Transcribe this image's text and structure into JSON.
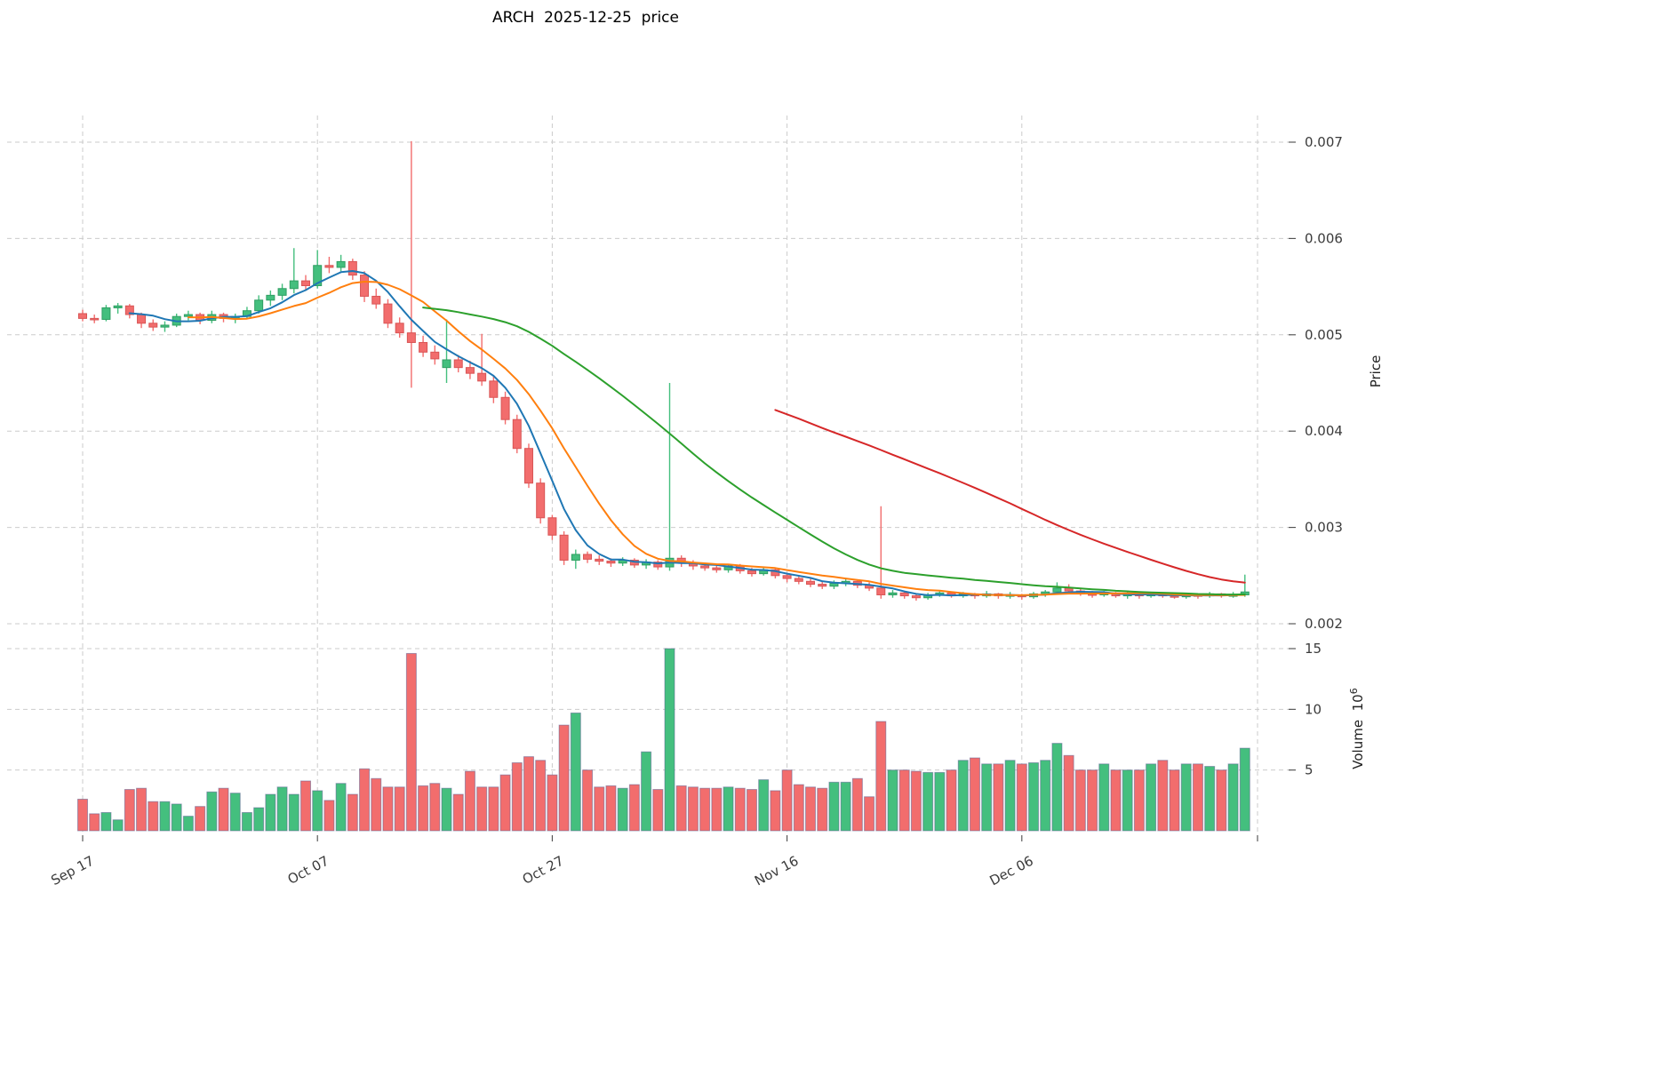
{
  "axes": {
    "volume_label": "Volume  10",
    "volume_exp": "6"
  },
  "chart_data": {
    "type": "candlestick",
    "title": "ARCH  2025-12-25  price",
    "ylabel": "Price",
    "volume_ylabel": "Volume 10^6",
    "xlabel": "",
    "legend": "none",
    "grid": true,
    "x_tick_labels": [
      "Sep 17",
      "Oct 07",
      "Oct 27",
      "Nov 16",
      "Dec 06"
    ],
    "x_tick_indices": [
      0,
      20,
      40,
      60,
      80
    ],
    "price_ticks": [
      0.002,
      0.003,
      0.004,
      0.005,
      0.006,
      0.007
    ],
    "price_ylim": [
      0.0019,
      0.0073
    ],
    "volume_ticks": [
      5,
      10,
      15
    ],
    "volume_ylim": [
      0,
      15.8
    ],
    "up_color": "#44bf7e",
    "down_color": "#f26d6d",
    "up_edge_color": "#2f9e62",
    "down_edge_color": "#d85555",
    "volume_bar_edge_color": "#55598e",
    "ma_lines": [
      {
        "name": "MA5",
        "window": 5,
        "color": "#1f77b4"
      },
      {
        "name": "MA10",
        "window": 10,
        "color": "#ff7f0e"
      },
      {
        "name": "MA30",
        "window": 30,
        "color": "#2ca02c"
      },
      {
        "name": "MA60",
        "window": 60,
        "color": "#d62728"
      }
    ],
    "ohlc": [
      [
        0.00522,
        0.00526,
        0.00514,
        0.00517
      ],
      [
        0.00517,
        0.00521,
        0.00512,
        0.00516
      ],
      [
        0.00516,
        0.00531,
        0.00514,
        0.00528
      ],
      [
        0.00528,
        0.00533,
        0.00522,
        0.0053
      ],
      [
        0.0053,
        0.00532,
        0.00517,
        0.00521
      ],
      [
        0.00521,
        0.00523,
        0.00507,
        0.00512
      ],
      [
        0.00512,
        0.00516,
        0.00504,
        0.00508
      ],
      [
        0.00508,
        0.00514,
        0.00503,
        0.0051
      ],
      [
        0.0051,
        0.00522,
        0.00508,
        0.00519
      ],
      [
        0.00519,
        0.00525,
        0.00515,
        0.00521
      ],
      [
        0.00521,
        0.00523,
        0.00511,
        0.00515
      ],
      [
        0.00515,
        0.00525,
        0.00512,
        0.00521
      ],
      [
        0.00521,
        0.00523,
        0.00513,
        0.00517
      ],
      [
        0.00517,
        0.00522,
        0.00512,
        0.00519
      ],
      [
        0.00519,
        0.00529,
        0.00516,
        0.00525
      ],
      [
        0.00525,
        0.00541,
        0.00522,
        0.00536
      ],
      [
        0.00536,
        0.00546,
        0.0053,
        0.00541
      ],
      [
        0.00541,
        0.00553,
        0.00536,
        0.00548
      ],
      [
        0.00548,
        0.0059,
        0.00543,
        0.00556
      ],
      [
        0.00556,
        0.00562,
        0.00547,
        0.00551
      ],
      [
        0.00551,
        0.00588,
        0.00548,
        0.00572
      ],
      [
        0.00572,
        0.00581,
        0.00564,
        0.0057
      ],
      [
        0.0057,
        0.00583,
        0.00566,
        0.00576
      ],
      [
        0.00576,
        0.00579,
        0.00557,
        0.00562
      ],
      [
        0.00562,
        0.00566,
        0.00534,
        0.0054
      ],
      [
        0.0054,
        0.00548,
        0.00527,
        0.00532
      ],
      [
        0.00532,
        0.00537,
        0.00507,
        0.00512
      ],
      [
        0.00512,
        0.00518,
        0.00497,
        0.00502
      ],
      [
        0.00502,
        0.00701,
        0.00445,
        0.00492
      ],
      [
        0.00492,
        0.00499,
        0.00477,
        0.00482
      ],
      [
        0.00482,
        0.00489,
        0.00469,
        0.00475
      ],
      [
        0.00466,
        0.00516,
        0.0045,
        0.00474
      ],
      [
        0.00474,
        0.00479,
        0.00461,
        0.00466
      ],
      [
        0.00466,
        0.00473,
        0.00454,
        0.0046
      ],
      [
        0.0046,
        0.00501,
        0.00447,
        0.00452
      ],
      [
        0.00452,
        0.00457,
        0.00429,
        0.00435
      ],
      [
        0.00435,
        0.00441,
        0.00407,
        0.00412
      ],
      [
        0.00412,
        0.00417,
        0.00377,
        0.00382
      ],
      [
        0.00382,
        0.00387,
        0.00341,
        0.00346
      ],
      [
        0.00346,
        0.00351,
        0.00304,
        0.0031
      ],
      [
        0.0031,
        0.00313,
        0.00287,
        0.00292
      ],
      [
        0.00292,
        0.00296,
        0.00261,
        0.00266
      ],
      [
        0.00266,
        0.00277,
        0.00257,
        0.00272
      ],
      [
        0.00272,
        0.00275,
        0.00263,
        0.00267
      ],
      [
        0.00267,
        0.00271,
        0.00261,
        0.00265
      ],
      [
        0.00265,
        0.00268,
        0.00259,
        0.00263
      ],
      [
        0.00263,
        0.00269,
        0.0026,
        0.00266
      ],
      [
        0.00266,
        0.00268,
        0.00258,
        0.00261
      ],
      [
        0.00261,
        0.00267,
        0.00257,
        0.00264
      ],
      [
        0.00264,
        0.00266,
        0.00256,
        0.00259
      ],
      [
        0.00259,
        0.0045,
        0.00255,
        0.00268
      ],
      [
        0.00268,
        0.00271,
        0.00259,
        0.00263
      ],
      [
        0.00263,
        0.00266,
        0.00256,
        0.0026
      ],
      [
        0.0026,
        0.00263,
        0.00255,
        0.00258
      ],
      [
        0.00258,
        0.00261,
        0.00253,
        0.00256
      ],
      [
        0.00256,
        0.00262,
        0.00253,
        0.0026
      ],
      [
        0.0026,
        0.00262,
        0.00252,
        0.00255
      ],
      [
        0.00255,
        0.00258,
        0.00249,
        0.00252
      ],
      [
        0.00252,
        0.00259,
        0.0025,
        0.00256
      ],
      [
        0.00256,
        0.00258,
        0.00247,
        0.0025
      ],
      [
        0.0025,
        0.00253,
        0.00243,
        0.00247
      ],
      [
        0.00247,
        0.0025,
        0.00241,
        0.00244
      ],
      [
        0.00244,
        0.00247,
        0.00238,
        0.00241
      ],
      [
        0.00241,
        0.00244,
        0.00236,
        0.00239
      ],
      [
        0.00239,
        0.00245,
        0.00236,
        0.00242
      ],
      [
        0.00242,
        0.00247,
        0.00239,
        0.00244
      ],
      [
        0.00244,
        0.00246,
        0.00237,
        0.0024
      ],
      [
        0.0024,
        0.00243,
        0.00234,
        0.00237
      ],
      [
        0.00237,
        0.00322,
        0.00226,
        0.0023
      ],
      [
        0.0023,
        0.00235,
        0.00227,
        0.00232
      ],
      [
        0.00232,
        0.00234,
        0.00226,
        0.00229
      ],
      [
        0.00229,
        0.00231,
        0.00224,
        0.00227
      ],
      [
        0.00227,
        0.00232,
        0.00225,
        0.0023
      ],
      [
        0.0023,
        0.00234,
        0.00228,
        0.00232
      ],
      [
        0.00232,
        0.00233,
        0.00227,
        0.00229
      ],
      [
        0.00229,
        0.00233,
        0.00227,
        0.00231
      ],
      [
        0.00231,
        0.00232,
        0.00226,
        0.00229
      ],
      [
        0.00229,
        0.00234,
        0.00227,
        0.00231
      ],
      [
        0.00231,
        0.00232,
        0.00226,
        0.00229
      ],
      [
        0.00229,
        0.00233,
        0.00226,
        0.0023
      ],
      [
        0.0023,
        0.00231,
        0.00225,
        0.00228
      ],
      [
        0.00228,
        0.00233,
        0.00226,
        0.00231
      ],
      [
        0.00231,
        0.00235,
        0.00228,
        0.00233
      ],
      [
        0.00233,
        0.00243,
        0.0023,
        0.00237
      ],
      [
        0.00237,
        0.00241,
        0.00231,
        0.00234
      ],
      [
        0.00234,
        0.00236,
        0.00229,
        0.00231
      ],
      [
        0.00231,
        0.00234,
        0.00227,
        0.0023
      ],
      [
        0.0023,
        0.00234,
        0.00228,
        0.00232
      ],
      [
        0.00232,
        0.00233,
        0.00227,
        0.00229
      ],
      [
        0.00229,
        0.00233,
        0.00226,
        0.00231
      ],
      [
        0.00231,
        0.00232,
        0.00226,
        0.00229
      ],
      [
        0.00229,
        0.00233,
        0.00227,
        0.00231
      ],
      [
        0.00231,
        0.00232,
        0.00227,
        0.00229
      ],
      [
        0.00229,
        0.00231,
        0.00226,
        0.00228
      ],
      [
        0.00228,
        0.00232,
        0.00226,
        0.0023
      ],
      [
        0.0023,
        0.00231,
        0.00226,
        0.00229
      ],
      [
        0.00229,
        0.00233,
        0.00227,
        0.00231
      ],
      [
        0.00231,
        0.00232,
        0.00227,
        0.00229
      ],
      [
        0.00229,
        0.00233,
        0.00227,
        0.0023
      ],
      [
        0.0023,
        0.00251,
        0.00228,
        0.00233
      ]
    ],
    "volume": [
      2.6,
      1.4,
      1.5,
      0.9,
      3.4,
      3.5,
      2.4,
      2.4,
      2.2,
      1.2,
      2.0,
      3.2,
      3.5,
      3.1,
      1.5,
      1.9,
      3.0,
      3.6,
      3.0,
      4.1,
      3.3,
      2.5,
      3.9,
      3.0,
      5.1,
      4.3,
      3.6,
      3.6,
      14.6,
      3.7,
      3.9,
      3.5,
      3.0,
      4.9,
      3.6,
      3.6,
      4.6,
      5.6,
      6.1,
      5.8,
      4.6,
      8.7,
      9.7,
      5.0,
      3.6,
      3.7,
      3.5,
      3.8,
      6.5,
      3.4,
      15.0,
      3.7,
      3.6,
      3.5,
      3.5,
      3.6,
      3.5,
      3.4,
      4.2,
      3.3,
      5.0,
      3.8,
      3.6,
      3.5,
      4.0,
      4.0,
      4.3,
      2.8,
      9.0,
      5.0,
      5.0,
      4.9,
      4.8,
      4.8,
      5.0,
      5.8,
      6.0,
      5.5,
      5.5,
      5.8,
      5.5,
      5.6,
      5.8,
      7.2,
      6.2,
      5.0,
      5.0,
      5.5,
      5.0,
      5.0,
      5.0,
      5.5,
      5.8,
      5.0,
      5.5,
      5.5,
      5.3,
      5.0,
      5.5,
      6.8
    ]
  }
}
